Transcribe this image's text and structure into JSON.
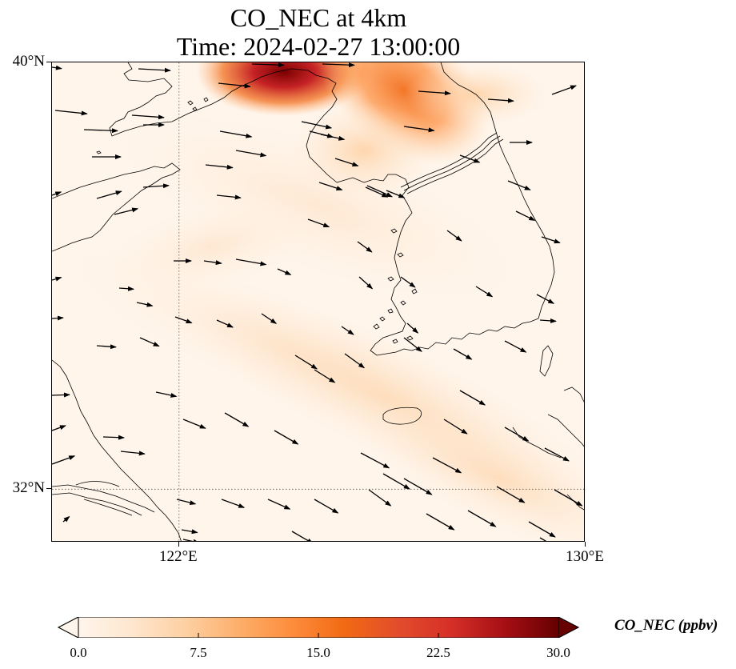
{
  "title": {
    "line1": "CO_NEC at 4km",
    "line2": "Time: 2024-02-27 13:00:00"
  },
  "map": {
    "variable": "CO_NEC",
    "extent": {
      "lon_min": 119.5,
      "lon_max": 130.0,
      "lat_min": 31.0,
      "lat_max": 40.0
    },
    "gridlines": {
      "lons": [
        122
      ],
      "lats": [
        32
      ],
      "style": "dotted"
    },
    "lat_ticks": [
      {
        "value": 40,
        "label": "40°N"
      },
      {
        "value": 32,
        "label": "32°N"
      }
    ],
    "lon_ticks": [
      {
        "value": 122,
        "label": "122°E"
      },
      {
        "value": 130,
        "label": "130°E"
      }
    ],
    "features": [
      "coastlines",
      "country-borders",
      "wind-vectors"
    ],
    "high_concentration_region": "Bohai Bay / North Korea border near 39.5–40°N"
  },
  "colorbar": {
    "label": "CO_NEC (ppbv)",
    "min": 0.0,
    "max": 30.0,
    "extend": "both",
    "colormap": "Oranges-to-darkred",
    "colors": [
      "#fff5eb",
      "#fee6ce",
      "#fdd0a2",
      "#fdae6b",
      "#fd8d3c",
      "#f16913",
      "#e24d2c",
      "#d62f27",
      "#a50f15",
      "#670000"
    ],
    "ticks": [
      {
        "value": 0.0,
        "label": "0.0"
      },
      {
        "value": 7.5,
        "label": "7.5"
      },
      {
        "value": 15.0,
        "label": "15.0"
      },
      {
        "value": 22.5,
        "label": "22.5"
      },
      {
        "value": 30.0,
        "label": "30.0"
      }
    ]
  }
}
